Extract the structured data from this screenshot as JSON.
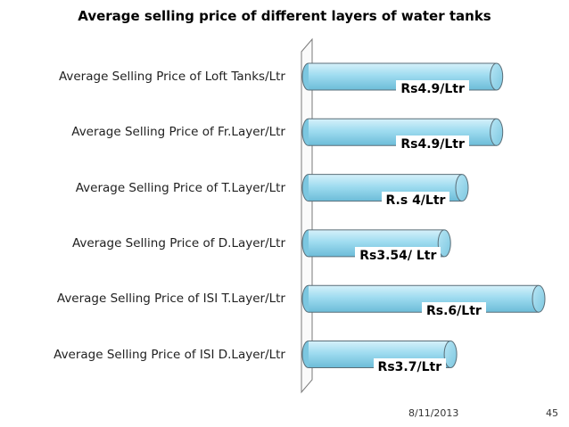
{
  "chart_data": {
    "type": "bar",
    "orientation": "horizontal",
    "title": "Average selling price of different layers of water tanks",
    "categories": [
      "Average Selling Price of Loft Tanks/Ltr",
      "Average Selling Price of Fr.Layer/Ltr",
      "Average Selling Price of T.Layer/Ltr",
      "Average Selling Price of D.Layer/Ltr",
      "Average Selling Price of ISI T.Layer/Ltr",
      "Average Selling Price of ISI D.Layer/Ltr"
    ],
    "values": [
      4.9,
      4.9,
      4,
      3.54,
      6,
      3.7
    ],
    "data_labels": [
      "Rs4.9/Ltr",
      "Rs4.9/Ltr",
      "R.s 4/Ltr",
      "Rs3.54/ Ltr",
      "Rs.6/Ltr",
      "Rs3.7/Ltr"
    ],
    "grid": false,
    "legend": "none",
    "bar_color": "#8fd3ec"
  },
  "footer": {
    "date": "8/11/2013",
    "page": "45"
  }
}
